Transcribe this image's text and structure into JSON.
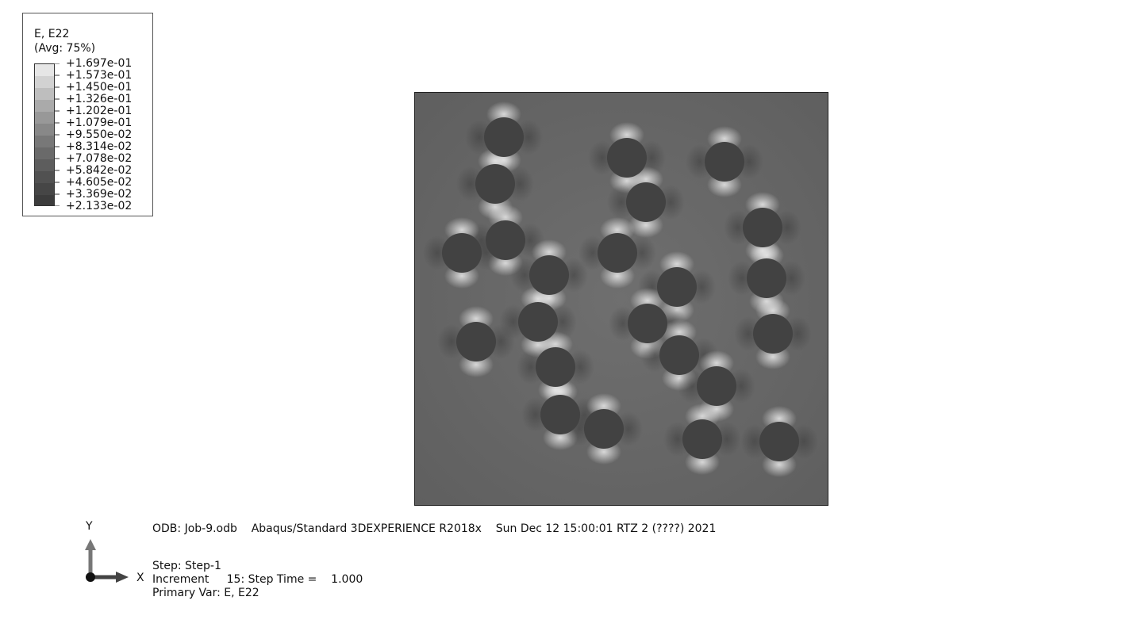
{
  "legend": {
    "title": "E, E22",
    "subtitle": "(Avg: 75%)",
    "levels": [
      "+1.697e-01",
      "+1.573e-01",
      "+1.450e-01",
      "+1.326e-01",
      "+1.202e-01",
      "+1.079e-01",
      "+9.550e-02",
      "+8.314e-02",
      "+7.078e-02",
      "+5.842e-02",
      "+4.605e-02",
      "+3.369e-02",
      "+2.133e-02"
    ],
    "colors": [
      "#e6e6e6",
      "#d2d2d2",
      "#bebebe",
      "#aaaaaa",
      "#989898",
      "#888888",
      "#787878",
      "#6a6a6a",
      "#5d5d5d",
      "#515151",
      "#464646",
      "#3c3c3c"
    ]
  },
  "model": {
    "matrix_color": "#6b6b6b",
    "inclusion_color": "#424242",
    "highlight_color": "#e8e8e8",
    "frame_color": "#222222"
  },
  "info": {
    "odb_line": "ODB: Job-9.odb    Abaqus/Standard 3DEXPERIENCE R2018x    Sun Dec 12 15:00:01 RTZ 2 (????) 2021",
    "step_line": "Step: Step-1",
    "increment_line": "Increment     15: Step Time =    1.000",
    "primary_var_line": "Primary Var: E, E22"
  },
  "triad": {
    "x_label": "X",
    "y_label": "Y"
  }
}
